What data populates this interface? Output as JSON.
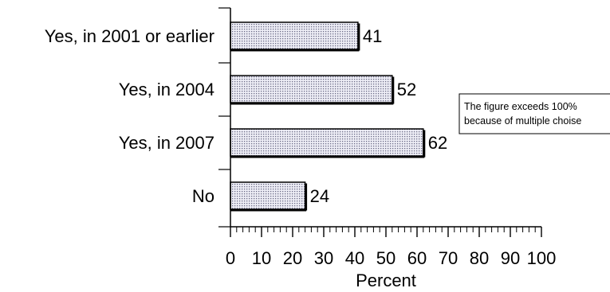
{
  "chart_data": {
    "type": "bar",
    "orientation": "horizontal",
    "categories": [
      "Yes, in 2001 or earlier",
      "Yes, in 2004",
      "Yes, in 2007",
      "No"
    ],
    "values": [
      41,
      52,
      62,
      24
    ],
    "xlabel": "Percent",
    "xlim": [
      0,
      100
    ],
    "xticks": [
      0,
      10,
      20,
      30,
      40,
      50,
      60,
      70,
      80,
      90,
      100
    ],
    "annotation": [
      "The figure exceeds 100%",
      "because of multiple choise"
    ],
    "bar_fill": "#dcdcec",
    "bar_stroke": "#000000"
  }
}
